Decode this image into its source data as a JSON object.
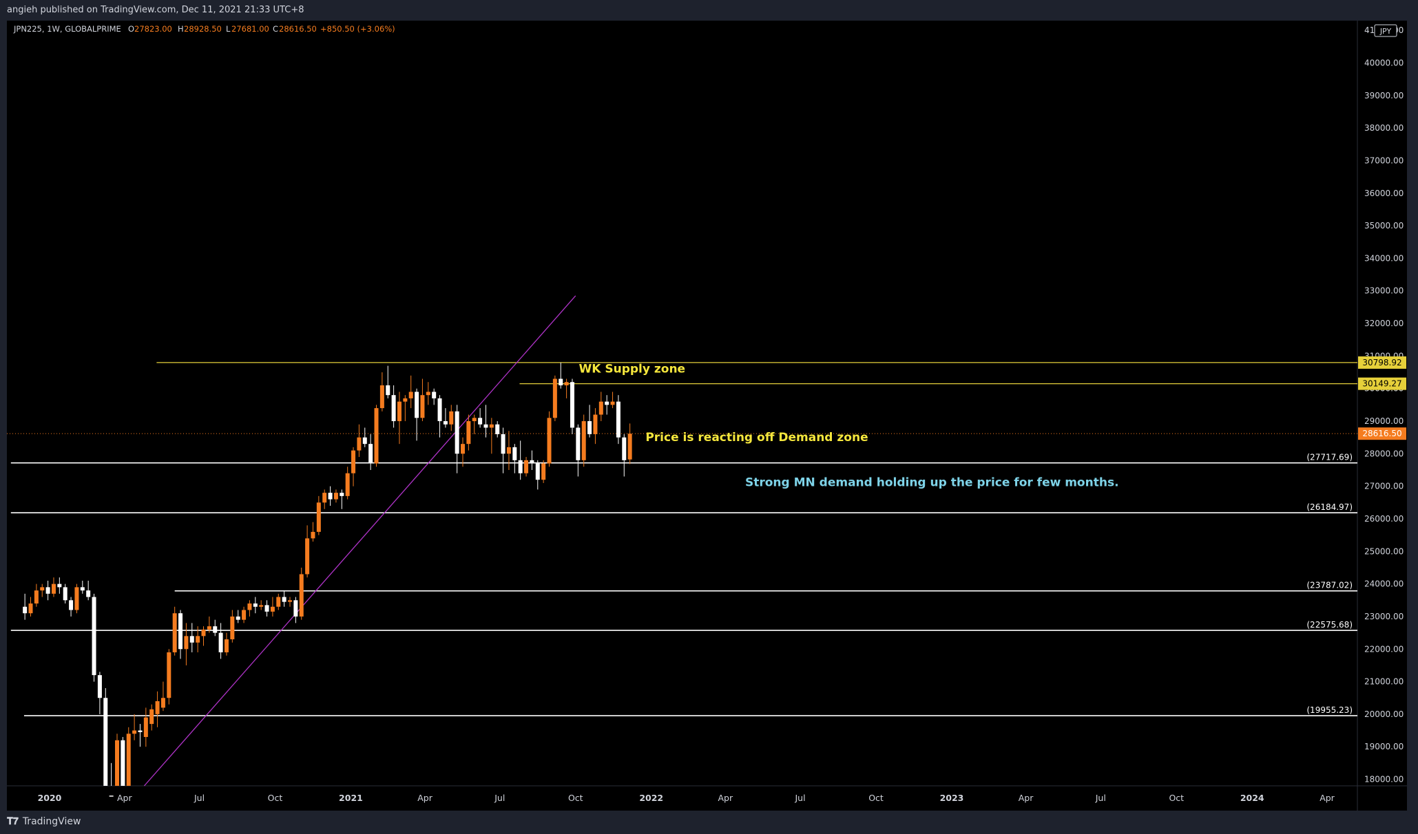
{
  "header": {
    "publisher": "angieh published on TradingView.com, Dec 11, 2021 21:33 UTC+8"
  },
  "legend": {
    "symbol": "JPN225, 1W, GLOBALPRIME",
    "open_label": "O",
    "open": "27823.00",
    "high_label": "H",
    "high": "28928.50",
    "low_label": "L",
    "low": "27681.00",
    "close_label": "C",
    "close": "28616.50",
    "change": "+850.50 (+3.06%)"
  },
  "currency": "JPY",
  "footer": {
    "brand": "TradingView"
  },
  "colors": {
    "background": "#000000",
    "frame": "#1e222d",
    "up": "#f57c1f",
    "down": "#ffffff",
    "supply_line": "#e6d03a",
    "demand_line": "#ffffff",
    "trendline": "#b033c9",
    "price_line": "#f57c1f",
    "annotation_yellow": "#f5e63c",
    "annotation_cyan": "#7ed3e8"
  },
  "chart_data": {
    "type": "candlestick",
    "symbol": "JPN225",
    "timeframe": "1W",
    "ylim": [
      17800,
      41300
    ],
    "y_ticks": [
      18000,
      19000,
      20000,
      21000,
      22000,
      23000,
      24000,
      25000,
      26000,
      27000,
      28000,
      29000,
      30000,
      31000,
      32000,
      33000,
      34000,
      35000,
      36000,
      37000,
      38000,
      39000,
      40000,
      41000
    ],
    "y_tick_labels": [
      "18000.00",
      "19000.00",
      "20000.00",
      "21000.00",
      "22000.00",
      "23000.00",
      "24000.00",
      "25000.00",
      "26000.00",
      "27000.00",
      "28000.00",
      "29000.00",
      "30000.00",
      "31000.00",
      "32000.00",
      "33000.00",
      "34000.00",
      "35000.00",
      "36000.00",
      "37000.00",
      "38000.00",
      "39000.00",
      "40000.00",
      "41000.00"
    ],
    "x_ticks": [
      {
        "label": "2020",
        "date": "2020-01-01",
        "bold": true
      },
      {
        "label": "Apr",
        "date": "2020-04-01"
      },
      {
        "label": "Jul",
        "date": "2020-07-01"
      },
      {
        "label": "Oct",
        "date": "2020-10-01"
      },
      {
        "label": "2021",
        "date": "2021-01-01",
        "bold": true
      },
      {
        "label": "Apr",
        "date": "2021-04-01"
      },
      {
        "label": "Jul",
        "date": "2021-07-01"
      },
      {
        "label": "Oct",
        "date": "2021-10-01"
      },
      {
        "label": "2022",
        "date": "2022-01-01",
        "bold": true
      },
      {
        "label": "Apr",
        "date": "2022-04-01"
      },
      {
        "label": "Jul",
        "date": "2022-07-01"
      },
      {
        "label": "Oct",
        "date": "2022-10-01"
      },
      {
        "label": "2023",
        "date": "2023-01-01",
        "bold": true
      },
      {
        "label": "Apr",
        "date": "2023-04-01"
      },
      {
        "label": "Jul",
        "date": "2023-07-01"
      },
      {
        "label": "Oct",
        "date": "2023-10-01"
      },
      {
        "label": "2024",
        "date": "2024-01-01",
        "bold": true
      },
      {
        "label": "Apr",
        "date": "2024-04-01"
      }
    ],
    "candles": [
      {
        "date": "2019-12-02",
        "o": 23300,
        "h": 23700,
        "l": 22900,
        "c": 23100
      },
      {
        "date": "2019-12-09",
        "o": 23100,
        "h": 23600,
        "l": 23000,
        "c": 23400
      },
      {
        "date": "2019-12-16",
        "o": 23400,
        "h": 24000,
        "l": 23300,
        "c": 23800
      },
      {
        "date": "2019-12-23",
        "o": 23800,
        "h": 24000,
        "l": 23600,
        "c": 23900
      },
      {
        "date": "2019-12-30",
        "o": 23900,
        "h": 24100,
        "l": 23500,
        "c": 23700
      },
      {
        "date": "2020-01-06",
        "o": 23700,
        "h": 24200,
        "l": 23600,
        "c": 24000
      },
      {
        "date": "2020-01-13",
        "o": 24000,
        "h": 24200,
        "l": 23700,
        "c": 23900
      },
      {
        "date": "2020-01-20",
        "o": 23900,
        "h": 24000,
        "l": 23400,
        "c": 23500
      },
      {
        "date": "2020-01-27",
        "o": 23500,
        "h": 23600,
        "l": 23000,
        "c": 23200
      },
      {
        "date": "2020-02-03",
        "o": 23200,
        "h": 24000,
        "l": 23100,
        "c": 23900
      },
      {
        "date": "2020-02-10",
        "o": 23900,
        "h": 24100,
        "l": 23700,
        "c": 23800
      },
      {
        "date": "2020-02-17",
        "o": 23800,
        "h": 24100,
        "l": 23500,
        "c": 23600
      },
      {
        "date": "2020-02-24",
        "o": 23600,
        "h": 23700,
        "l": 21000,
        "c": 21200
      },
      {
        "date": "2020-03-02",
        "o": 21200,
        "h": 21300,
        "l": 20000,
        "c": 20500
      },
      {
        "date": "2020-03-09",
        "o": 20500,
        "h": 20800,
        "l": 16900,
        "c": 17500
      },
      {
        "date": "2020-03-16",
        "o": 17500,
        "h": 18500,
        "l": 16400,
        "c": 16700
      },
      {
        "date": "2020-03-23",
        "o": 16700,
        "h": 19400,
        "l": 16300,
        "c": 19200
      },
      {
        "date": "2020-03-30",
        "o": 19200,
        "h": 19300,
        "l": 17600,
        "c": 17800
      },
      {
        "date": "2020-04-06",
        "o": 17800,
        "h": 19600,
        "l": 17500,
        "c": 19400
      },
      {
        "date": "2020-04-13",
        "o": 19400,
        "h": 20000,
        "l": 19200,
        "c": 19500
      },
      {
        "date": "2020-04-20",
        "o": 19500,
        "h": 19700,
        "l": 19000,
        "c": 19450
      },
      {
        "date": "2020-04-27",
        "o": 19300,
        "h": 20200,
        "l": 19000,
        "c": 19900
      },
      {
        "date": "2020-05-04",
        "o": 19700,
        "h": 20300,
        "l": 19500,
        "c": 20150
      },
      {
        "date": "2020-05-11",
        "o": 20000,
        "h": 20700,
        "l": 19600,
        "c": 20400
      },
      {
        "date": "2020-05-18",
        "o": 20200,
        "h": 21000,
        "l": 20100,
        "c": 20500
      },
      {
        "date": "2020-05-25",
        "o": 20500,
        "h": 22000,
        "l": 20300,
        "c": 21900
      },
      {
        "date": "2020-06-01",
        "o": 21900,
        "h": 23300,
        "l": 21800,
        "c": 23100
      },
      {
        "date": "2020-06-08",
        "o": 23100,
        "h": 23200,
        "l": 21700,
        "c": 22000
      },
      {
        "date": "2020-06-15",
        "o": 22000,
        "h": 22800,
        "l": 21500,
        "c": 22400
      },
      {
        "date": "2020-06-22",
        "o": 22400,
        "h": 22800,
        "l": 21900,
        "c": 22200
      },
      {
        "date": "2020-06-29",
        "o": 22200,
        "h": 22700,
        "l": 21900,
        "c": 22400
      },
      {
        "date": "2020-07-06",
        "o": 22400,
        "h": 22700,
        "l": 22100,
        "c": 22600
      },
      {
        "date": "2020-07-13",
        "o": 22600,
        "h": 23000,
        "l": 22500,
        "c": 22700
      },
      {
        "date": "2020-07-20",
        "o": 22700,
        "h": 22900,
        "l": 22400,
        "c": 22500
      },
      {
        "date": "2020-07-27",
        "o": 22500,
        "h": 22800,
        "l": 21700,
        "c": 21900
      },
      {
        "date": "2020-08-03",
        "o": 21900,
        "h": 22500,
        "l": 21800,
        "c": 22300
      },
      {
        "date": "2020-08-10",
        "o": 22300,
        "h": 23200,
        "l": 22200,
        "c": 23000
      },
      {
        "date": "2020-08-17",
        "o": 23000,
        "h": 23200,
        "l": 22800,
        "c": 22900
      },
      {
        "date": "2020-08-24",
        "o": 22900,
        "h": 23300,
        "l": 22800,
        "c": 23200
      },
      {
        "date": "2020-08-31",
        "o": 23200,
        "h": 23500,
        "l": 23000,
        "c": 23400
      },
      {
        "date": "2020-09-07",
        "o": 23400,
        "h": 23600,
        "l": 23100,
        "c": 23300
      },
      {
        "date": "2020-09-14",
        "o": 23300,
        "h": 23500,
        "l": 23200,
        "c": 23350
      },
      {
        "date": "2020-09-21",
        "o": 23350,
        "h": 23500,
        "l": 23000,
        "c": 23150
      },
      {
        "date": "2020-09-28",
        "o": 23150,
        "h": 23600,
        "l": 23000,
        "c": 23300
      },
      {
        "date": "2020-10-05",
        "o": 23300,
        "h": 23700,
        "l": 23200,
        "c": 23600
      },
      {
        "date": "2020-10-12",
        "o": 23600,
        "h": 23800,
        "l": 23300,
        "c": 23450
      },
      {
        "date": "2020-10-19",
        "o": 23450,
        "h": 23600,
        "l": 23300,
        "c": 23500
      },
      {
        "date": "2020-10-26",
        "o": 23500,
        "h": 23600,
        "l": 22800,
        "c": 23000
      },
      {
        "date": "2020-11-02",
        "o": 23000,
        "h": 24500,
        "l": 22900,
        "c": 24300
      },
      {
        "date": "2020-11-09",
        "o": 24300,
        "h": 25800,
        "l": 24200,
        "c": 25400
      },
      {
        "date": "2020-11-16",
        "o": 25400,
        "h": 25900,
        "l": 25300,
        "c": 25600
      },
      {
        "date": "2020-11-23",
        "o": 25600,
        "h": 26700,
        "l": 25500,
        "c": 26500
      },
      {
        "date": "2020-11-30",
        "o": 26500,
        "h": 26900,
        "l": 26300,
        "c": 26800
      },
      {
        "date": "2020-12-07",
        "o": 26800,
        "h": 27000,
        "l": 26400,
        "c": 26600
      },
      {
        "date": "2020-12-14",
        "o": 26600,
        "h": 26900,
        "l": 26500,
        "c": 26800
      },
      {
        "date": "2020-12-21",
        "o": 26800,
        "h": 26900,
        "l": 26300,
        "c": 26700
      },
      {
        "date": "2020-12-28",
        "o": 26700,
        "h": 27600,
        "l": 26600,
        "c": 27400
      },
      {
        "date": "2021-01-04",
        "o": 27400,
        "h": 28200,
        "l": 27000,
        "c": 28100
      },
      {
        "date": "2021-01-11",
        "o": 28100,
        "h": 28900,
        "l": 27900,
        "c": 28500
      },
      {
        "date": "2021-01-18",
        "o": 28500,
        "h": 28800,
        "l": 28200,
        "c": 28300
      },
      {
        "date": "2021-01-25",
        "o": 28300,
        "h": 28600,
        "l": 27500,
        "c": 27700
      },
      {
        "date": "2021-02-01",
        "o": 27700,
        "h": 29500,
        "l": 27600,
        "c": 29400
      },
      {
        "date": "2021-02-08",
        "o": 29400,
        "h": 30500,
        "l": 29300,
        "c": 30100
      },
      {
        "date": "2021-02-15",
        "o": 30100,
        "h": 30700,
        "l": 29700,
        "c": 29800
      },
      {
        "date": "2021-02-22",
        "o": 29800,
        "h": 30100,
        "l": 28800,
        "c": 29000
      },
      {
        "date": "2021-03-01",
        "o": 29000,
        "h": 29900,
        "l": 28300,
        "c": 29600
      },
      {
        "date": "2021-03-08",
        "o": 29600,
        "h": 29800,
        "l": 29000,
        "c": 29700
      },
      {
        "date": "2021-03-15",
        "o": 29700,
        "h": 30400,
        "l": 29400,
        "c": 29900
      },
      {
        "date": "2021-03-22",
        "o": 29900,
        "h": 30000,
        "l": 28400,
        "c": 29100
      },
      {
        "date": "2021-03-29",
        "o": 29100,
        "h": 30300,
        "l": 29000,
        "c": 29800
      },
      {
        "date": "2021-04-05",
        "o": 29800,
        "h": 30200,
        "l": 29500,
        "c": 29900
      },
      {
        "date": "2021-04-12",
        "o": 29900,
        "h": 30000,
        "l": 29500,
        "c": 29700
      },
      {
        "date": "2021-04-19",
        "o": 29700,
        "h": 29800,
        "l": 28500,
        "c": 29000
      },
      {
        "date": "2021-04-26",
        "o": 29000,
        "h": 29400,
        "l": 28800,
        "c": 28900
      },
      {
        "date": "2021-05-03",
        "o": 28900,
        "h": 29500,
        "l": 28700,
        "c": 29300
      },
      {
        "date": "2021-05-10",
        "o": 29300,
        "h": 29500,
        "l": 27400,
        "c": 28000
      },
      {
        "date": "2021-05-17",
        "o": 28000,
        "h": 28500,
        "l": 27600,
        "c": 28300
      },
      {
        "date": "2021-05-24",
        "o": 28300,
        "h": 29200,
        "l": 28100,
        "c": 29000
      },
      {
        "date": "2021-05-31",
        "o": 29000,
        "h": 29200,
        "l": 28600,
        "c": 29100
      },
      {
        "date": "2021-06-07",
        "o": 29100,
        "h": 29400,
        "l": 28800,
        "c": 28900
      },
      {
        "date": "2021-06-14",
        "o": 28900,
        "h": 29500,
        "l": 28500,
        "c": 28800
      },
      {
        "date": "2021-06-21",
        "o": 28800,
        "h": 29100,
        "l": 28000,
        "c": 28900
      },
      {
        "date": "2021-06-28",
        "o": 28900,
        "h": 29000,
        "l": 28500,
        "c": 28600
      },
      {
        "date": "2021-07-05",
        "o": 28600,
        "h": 28800,
        "l": 27400,
        "c": 28000
      },
      {
        "date": "2021-07-12",
        "o": 28000,
        "h": 28700,
        "l": 27500,
        "c": 28200
      },
      {
        "date": "2021-07-19",
        "o": 28200,
        "h": 28300,
        "l": 27400,
        "c": 27800
      },
      {
        "date": "2021-07-26",
        "o": 27800,
        "h": 28400,
        "l": 27200,
        "c": 27400
      },
      {
        "date": "2021-08-02",
        "o": 27400,
        "h": 27900,
        "l": 27300,
        "c": 27800
      },
      {
        "date": "2021-08-09",
        "o": 27800,
        "h": 28100,
        "l": 27500,
        "c": 27700
      },
      {
        "date": "2021-08-16",
        "o": 27700,
        "h": 27800,
        "l": 26900,
        "c": 27200
      },
      {
        "date": "2021-08-23",
        "o": 27200,
        "h": 27800,
        "l": 27100,
        "c": 27700
      },
      {
        "date": "2021-08-30",
        "o": 27700,
        "h": 29300,
        "l": 27600,
        "c": 29100
      },
      {
        "date": "2021-09-06",
        "o": 29100,
        "h": 30400,
        "l": 29000,
        "c": 30300
      },
      {
        "date": "2021-09-13",
        "o": 30300,
        "h": 30800,
        "l": 30000,
        "c": 30100
      },
      {
        "date": "2021-09-20",
        "o": 30100,
        "h": 30300,
        "l": 29700,
        "c": 30200
      },
      {
        "date": "2021-09-27",
        "o": 30200,
        "h": 30300,
        "l": 28600,
        "c": 28800
      },
      {
        "date": "2021-10-04",
        "o": 28800,
        "h": 28900,
        "l": 27300,
        "c": 27800
      },
      {
        "date": "2021-10-11",
        "o": 27800,
        "h": 29200,
        "l": 27600,
        "c": 29000
      },
      {
        "date": "2021-10-18",
        "o": 29000,
        "h": 29500,
        "l": 28500,
        "c": 28600
      },
      {
        "date": "2021-10-25",
        "o": 28600,
        "h": 29400,
        "l": 28300,
        "c": 29200
      },
      {
        "date": "2021-11-01",
        "o": 29200,
        "h": 29900,
        "l": 29000,
        "c": 29600
      },
      {
        "date": "2021-11-08",
        "o": 29600,
        "h": 29800,
        "l": 29200,
        "c": 29500
      },
      {
        "date": "2021-11-15",
        "o": 29500,
        "h": 29900,
        "l": 29400,
        "c": 29600
      },
      {
        "date": "2021-11-22",
        "o": 29600,
        "h": 29800,
        "l": 28300,
        "c": 28500
      },
      {
        "date": "2021-11-29",
        "o": 28500,
        "h": 28600,
        "l": 27300,
        "c": 27800
      },
      {
        "date": "2021-12-06",
        "o": 27823,
        "h": 28928.5,
        "l": 27681,
        "c": 28616.5
      }
    ],
    "horizontal_levels": [
      {
        "name": "supply-upper",
        "value": 30798.92,
        "label": "30798.92",
        "style": "supply",
        "from_date": "2020-05-10"
      },
      {
        "name": "supply-lower",
        "value": 30149.27,
        "label": "30149.27",
        "style": "supply",
        "from_date": "2021-07-25"
      },
      {
        "name": "demand-1",
        "value": 27717.69,
        "label": "(27717.69)",
        "style": "demand",
        "from_date": "2019-11-15"
      },
      {
        "name": "demand-2",
        "value": 26184.97,
        "label": "(26184.97)",
        "style": "demand",
        "from_date": "2019-11-15"
      },
      {
        "name": "demand-3",
        "value": 23787.02,
        "label": "(23787.02)",
        "style": "demand",
        "from_date": "2020-06-01"
      },
      {
        "name": "demand-4",
        "value": 22575.68,
        "label": "(22575.68)",
        "style": "demand",
        "from_date": "2019-11-15"
      },
      {
        "name": "demand-5",
        "value": 19955.23,
        "label": "(19955.23)",
        "style": "demand",
        "from_date": "2019-12-01"
      }
    ],
    "current_price": {
      "value": 28616.5,
      "label": "28616.50"
    },
    "trendline": {
      "from": {
        "date": "2020-04-25",
        "value": 17800
      },
      "to": {
        "date": "2021-10-01",
        "value": 32850
      }
    },
    "annotations": [
      {
        "text": "WK Supply zone",
        "date": "2021-10-05",
        "value": 30490,
        "color": "yellow",
        "size": 17
      },
      {
        "text": "Price is reacting off Demand zone",
        "date": "2021-12-25",
        "value": 28390,
        "color": "yellow",
        "size": 17
      },
      {
        "text": "Strong MN demand holding up the price for few months.",
        "date": "2022-04-25",
        "value": 27000,
        "color": "cyan",
        "size": 17
      }
    ]
  }
}
